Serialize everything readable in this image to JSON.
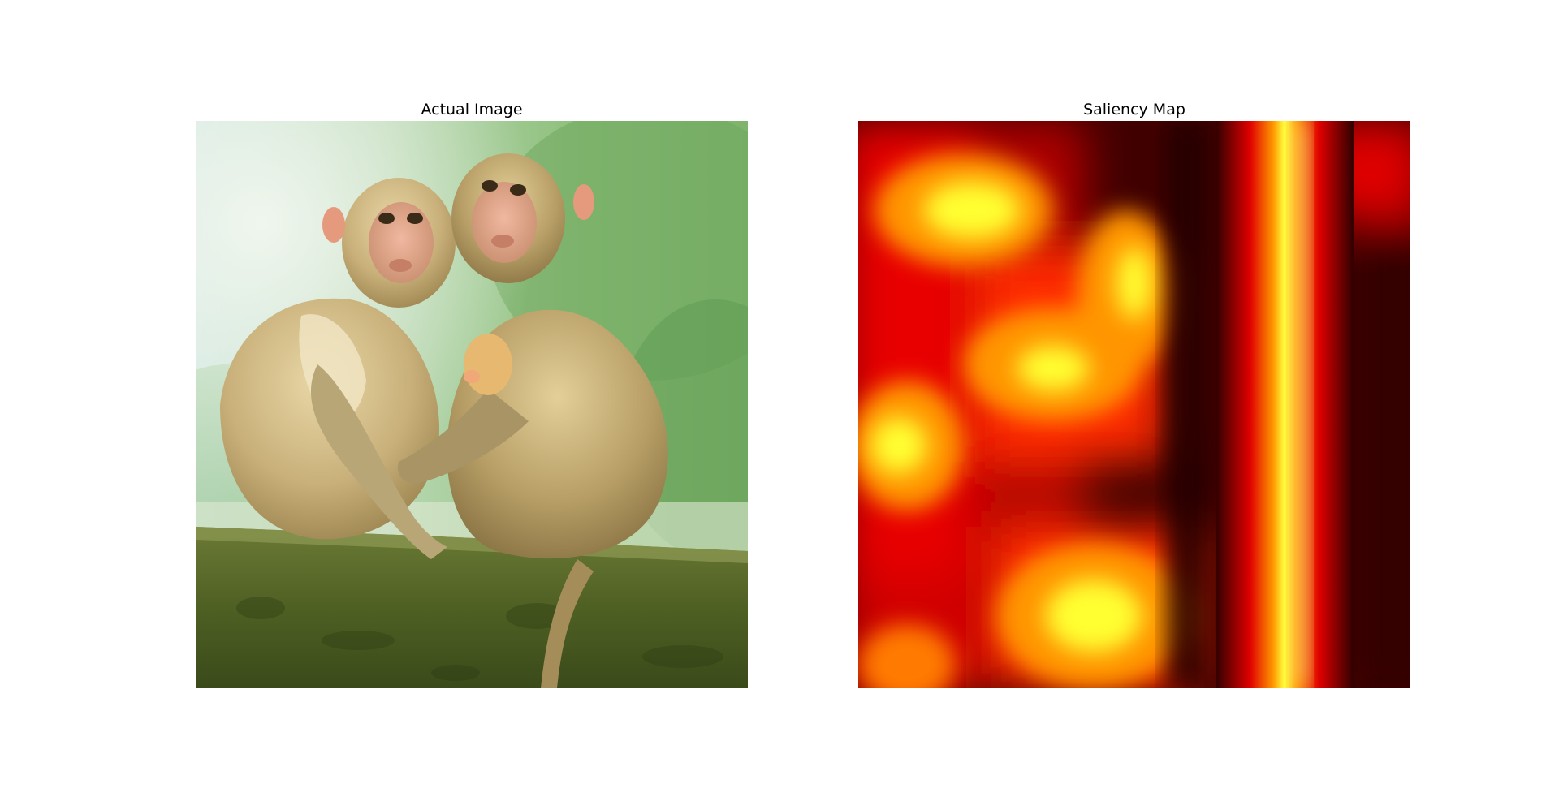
{
  "figure": {
    "left_panel": {
      "title": "Actual Image",
      "content": "photo"
    },
    "right_panel": {
      "title": "Saliency Map",
      "colormap": "hot"
    }
  }
}
